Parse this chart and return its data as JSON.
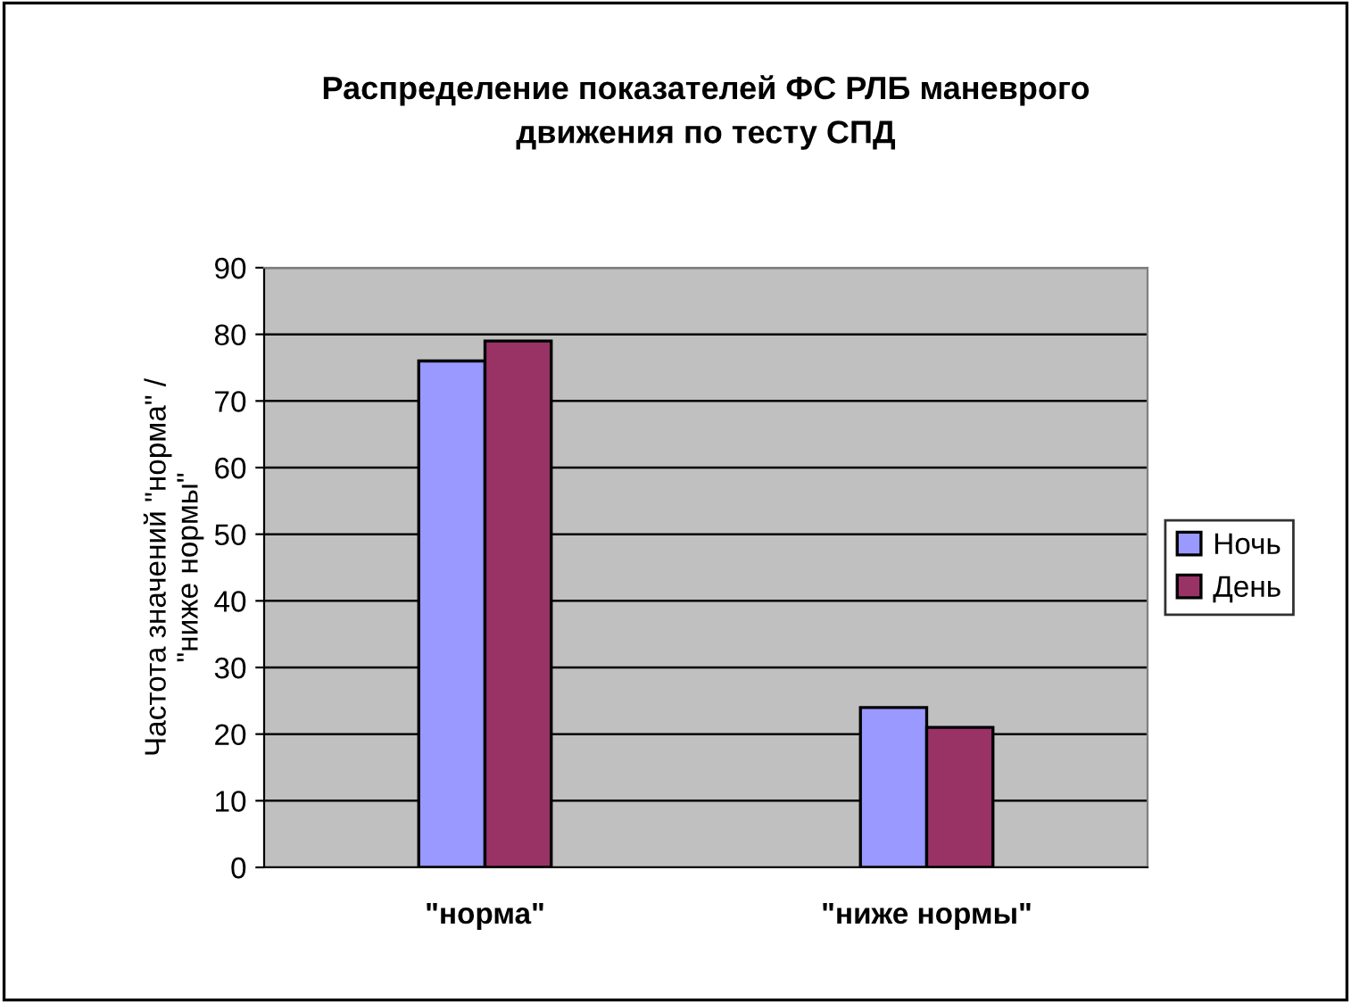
{
  "chart_data": {
    "type": "bar",
    "title": "Распределение показателей ФС РЛБ маневрого\nдвижения по тесту СПД",
    "ylabel": "Частота значений \"норма\" /\n\"ниже нормы\"",
    "categories": [
      "\"норма\"",
      "\"ниже нормы\""
    ],
    "series": [
      {
        "name": "Ночь",
        "color": "#9999ff",
        "values": [
          76,
          24
        ]
      },
      {
        "name": "День",
        "color": "#993366",
        "values": [
          79,
          21
        ]
      }
    ],
    "ylim": [
      0,
      90
    ],
    "yticks": [
      0,
      10,
      20,
      30,
      40,
      50,
      60,
      70,
      80,
      90
    ],
    "grid": "y",
    "legend": "right"
  }
}
